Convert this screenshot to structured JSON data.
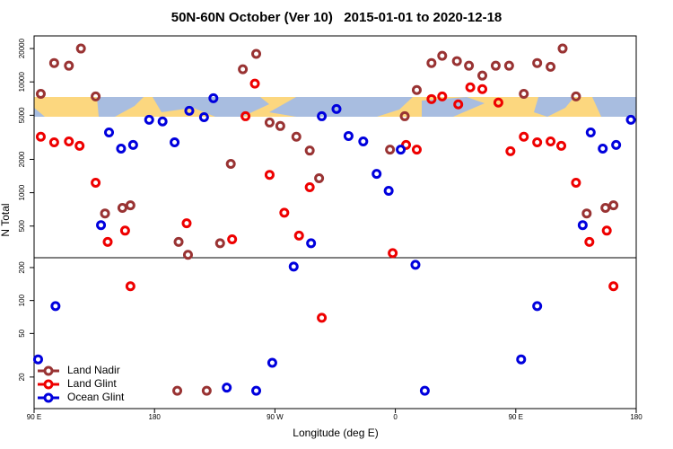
{
  "chart_data": [
    {
      "type": "scatter",
      "title": "50N-60N October (Ver 10)   2015-01-01 to 2020-12-18",
      "ylabel": "N Total",
      "xlim": [
        90,
        540
      ],
      "ylim": [
        259,
        26000
      ],
      "log_y": true,
      "yticks": [
        500,
        1000,
        2000,
        5000,
        10000,
        20000
      ],
      "series": [
        {
          "color": "#993333",
          "x": [
            95,
            105,
            116,
            125,
            136,
            143,
            156,
            162,
            198,
            205,
            229,
            237,
            246,
            256,
            266,
            274,
            286,
            296,
            303,
            356,
            367,
            376,
            387,
            395,
            406,
            415,
            425,
            435,
            445,
            456,
            466,
            476,
            485,
            495,
            503,
            517,
            523
          ],
          "values": [
            7800,
            14800,
            14000,
            20000,
            7400,
            650,
            730,
            770,
            360,
            275,
            350,
            1820,
            13000,
            17900,
            4300,
            4000,
            3200,
            2400,
            1350,
            2450,
            4900,
            8450,
            14800,
            17200,
            15400,
            14000,
            11400,
            14000,
            14000,
            7800,
            14800,
            13700,
            20000,
            7400,
            650,
            730,
            770
          ]
        },
        {
          "color": "#ee0000",
          "x": [
            95,
            105,
            116,
            124,
            136,
            145,
            158,
            204,
            238,
            248,
            255,
            266,
            277,
            288,
            296,
            358,
            368,
            376,
            387,
            395,
            407,
            416,
            425,
            437,
            446,
            456,
            466,
            476,
            484,
            495,
            505,
            518
          ],
          "values": [
            3200,
            2850,
            2900,
            2650,
            1230,
            360,
            455,
            530,
            380,
            4900,
            9640,
            1450,
            660,
            410,
            1120,
            285,
            2700,
            2450,
            7000,
            7400,
            6270,
            8930,
            8600,
            6500,
            2370,
            3200,
            2850,
            2900,
            2650,
            1230,
            360,
            455
          ]
        },
        {
          "color": "#0000dd",
          "x": [
            140,
            146,
            155,
            164,
            176,
            186,
            195,
            206,
            217,
            224,
            297,
            305,
            316,
            325,
            336,
            346,
            355,
            364,
            500,
            506,
            515,
            525,
            536
          ],
          "values": [
            510,
            3500,
            2500,
            2700,
            4550,
            4400,
            2850,
            5490,
            4800,
            7130,
            350,
            4900,
            5700,
            3250,
            2900,
            1480,
            1040,
            2450,
            510,
            3500,
            2500,
            2700,
            4550
          ]
        }
      ]
    },
    {
      "type": "scatter",
      "xlabel": "Longitude (deg E)",
      "xlim": [
        90,
        540
      ],
      "ylim": [
        10.3,
        246
      ],
      "log_y": true,
      "xticks": [
        {
          "value": 90,
          "label": "90 E"
        },
        180,
        {
          "value": 270,
          "label": "90 W"
        },
        {
          "value": 360,
          "label": "0"
        },
        {
          "value": 450,
          "label": "90 E"
        },
        {
          "value": 540,
          "label": "180"
        }
      ],
      "yticks": [
        20,
        50,
        100,
        200
      ],
      "legend": "bottom-left",
      "series": [
        {
          "name": "Land Nadir",
          "color": "#993333",
          "x": [
            197,
            219
          ],
          "values": [
            15,
            15
          ]
        },
        {
          "name": "Land Glint",
          "color": "#ee0000",
          "x": [
            162,
            305,
            523
          ],
          "values": [
            135,
            69.5,
            135
          ]
        },
        {
          "name": "Ocean Glint",
          "color": "#0000dd",
          "x": [
            93,
            106,
            234,
            256,
            268,
            284,
            375,
            382,
            454,
            466
          ],
          "values": [
            29,
            89,
            16,
            15,
            27,
            204,
            212,
            15,
            29,
            89
          ]
        }
      ]
    }
  ]
}
